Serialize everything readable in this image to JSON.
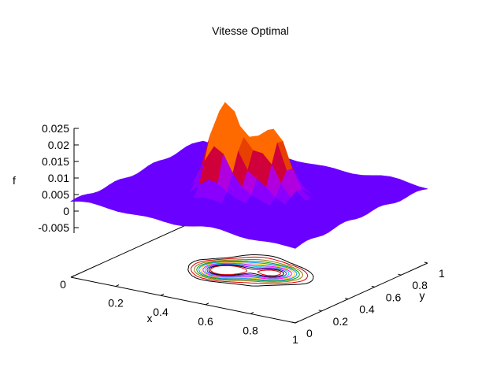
{
  "chart_data": {
    "type": "surface3d",
    "title": "Vitesse Optimal",
    "xlabel": "x",
    "ylabel": "y",
    "zlabel": "f",
    "xlim": [
      0,
      1
    ],
    "ylim": [
      0,
      1
    ],
    "zlim": [
      -0.008,
      0.025
    ],
    "xticks": [
      "0",
      "0.2",
      "0.4",
      "0.6",
      "0.8",
      "1"
    ],
    "yticks": [
      "0",
      "0.2",
      "0.4",
      "0.6",
      "0.8",
      "1"
    ],
    "zticks": [
      "-0.005",
      "0",
      "0.005",
      "0.01",
      "0.015",
      "0.02",
      "0.025"
    ],
    "base_level": 0.002,
    "peaks": [
      {
        "x": 0.42,
        "y": 0.44,
        "height": 0.022
      },
      {
        "x": 0.6,
        "y": 0.52,
        "height": 0.016
      },
      {
        "x": 0.5,
        "y": 0.5,
        "height": 0.01
      }
    ],
    "contours_at_base": true,
    "palette": [
      "#6a00ff",
      "#8a00ff",
      "#b000e0",
      "#d0003a",
      "#e84000",
      "#ff6a00"
    ],
    "contour_colors": [
      "#000000",
      "#d40000",
      "#a07000",
      "#00a000",
      "#0090ff",
      "#ffd000",
      "#ff00ff",
      "#00d0d0",
      "#7000ff"
    ]
  }
}
